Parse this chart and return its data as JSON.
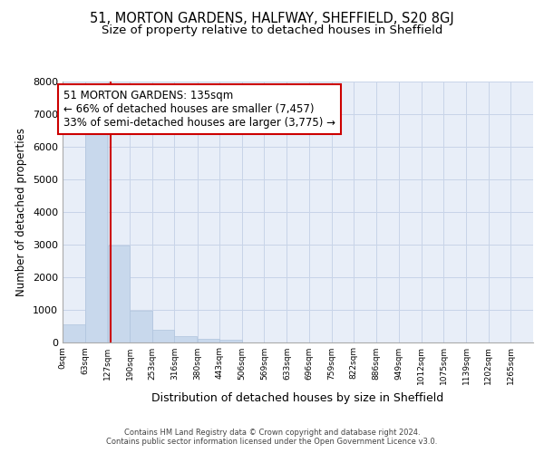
{
  "title": "51, MORTON GARDENS, HALFWAY, SHEFFIELD, S20 8GJ",
  "subtitle": "Size of property relative to detached houses in Sheffield",
  "xlabel": "Distribution of detached houses by size in Sheffield",
  "ylabel": "Number of detached properties",
  "bin_edges": [
    0,
    63,
    127,
    190,
    253,
    316,
    380,
    443,
    506,
    569,
    633,
    696,
    759,
    822,
    886,
    949,
    1012,
    1075,
    1139,
    1202,
    1265
  ],
  "bin_labels": [
    "0sqm",
    "63sqm",
    "127sqm",
    "190sqm",
    "253sqm",
    "316sqm",
    "380sqm",
    "443sqm",
    "506sqm",
    "569sqm",
    "633sqm",
    "696sqm",
    "759sqm",
    "822sqm",
    "886sqm",
    "949sqm",
    "1012sqm",
    "1075sqm",
    "1139sqm",
    "1202sqm",
    "1265sqm"
  ],
  "bar_values": [
    550,
    6400,
    2950,
    950,
    370,
    170,
    110,
    70,
    0,
    0,
    0,
    0,
    0,
    0,
    0,
    0,
    0,
    0,
    0,
    0
  ],
  "bar_color": "#c8d8ec",
  "bar_edge_color": "#b0c4de",
  "property_size": 135,
  "vline_color": "#cc0000",
  "annotation_line1": "51 MORTON GARDENS: 135sqm",
  "annotation_line2": "← 66% of detached houses are smaller (7,457)",
  "annotation_line3": "33% of semi-detached houses are larger (3,775) →",
  "annotation_box_color": "#cc0000",
  "ylim": [
    0,
    8000
  ],
  "yticks": [
    0,
    1000,
    2000,
    3000,
    4000,
    5000,
    6000,
    7000,
    8000
  ],
  "grid_color": "#c8d4e8",
  "background_color": "#e8eef8",
  "footer_text": "Contains HM Land Registry data © Crown copyright and database right 2024.\nContains public sector information licensed under the Open Government Licence v3.0.",
  "title_fontsize": 10.5,
  "subtitle_fontsize": 9.5,
  "annotation_fontsize": 8.5
}
